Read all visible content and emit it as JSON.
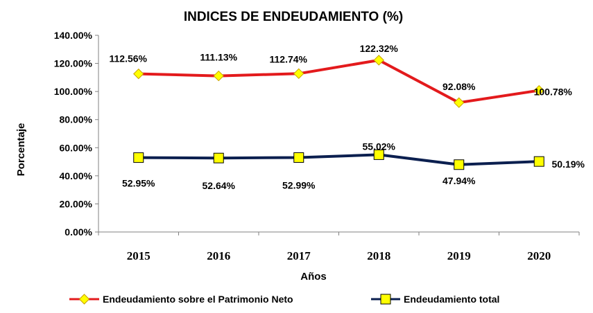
{
  "chart_data": {
    "type": "line",
    "title": "INDICES DE ENDEUDAMIENTO (%)",
    "xlabel": "Años",
    "ylabel": "Porcentaje",
    "categories": [
      "2015",
      "2016",
      "2017",
      "2018",
      "2019",
      "2020"
    ],
    "ylim": [
      0,
      140
    ],
    "yticks": [
      "0.00%",
      "20.00%",
      "40.00%",
      "60.00%",
      "80.00%",
      "100.00%",
      "120.00%",
      "140.00%"
    ],
    "grid": false,
    "legend_position": "bottom",
    "series": [
      {
        "name": "Endeudamiento sobre el Patrimonio Neto",
        "values": [
          112.56,
          111.13,
          112.74,
          122.32,
          92.08,
          100.78
        ],
        "labels": [
          "112.56%",
          "111.13%",
          "112.74%",
          "122.32%",
          "92.08%",
          "100.78%"
        ],
        "color": "#e31a1c",
        "marker": "diamond",
        "marker_color": "#ffff00"
      },
      {
        "name": "Endeudamiento total",
        "values": [
          52.95,
          52.64,
          52.99,
          55.02,
          47.94,
          50.19
        ],
        "labels": [
          "52.95%",
          "52.64%",
          "52.99%",
          "55.02%",
          "47.94%",
          "50.19%"
        ],
        "color": "#0b1f4f",
        "marker": "square",
        "marker_color": "#ffff00"
      }
    ]
  }
}
